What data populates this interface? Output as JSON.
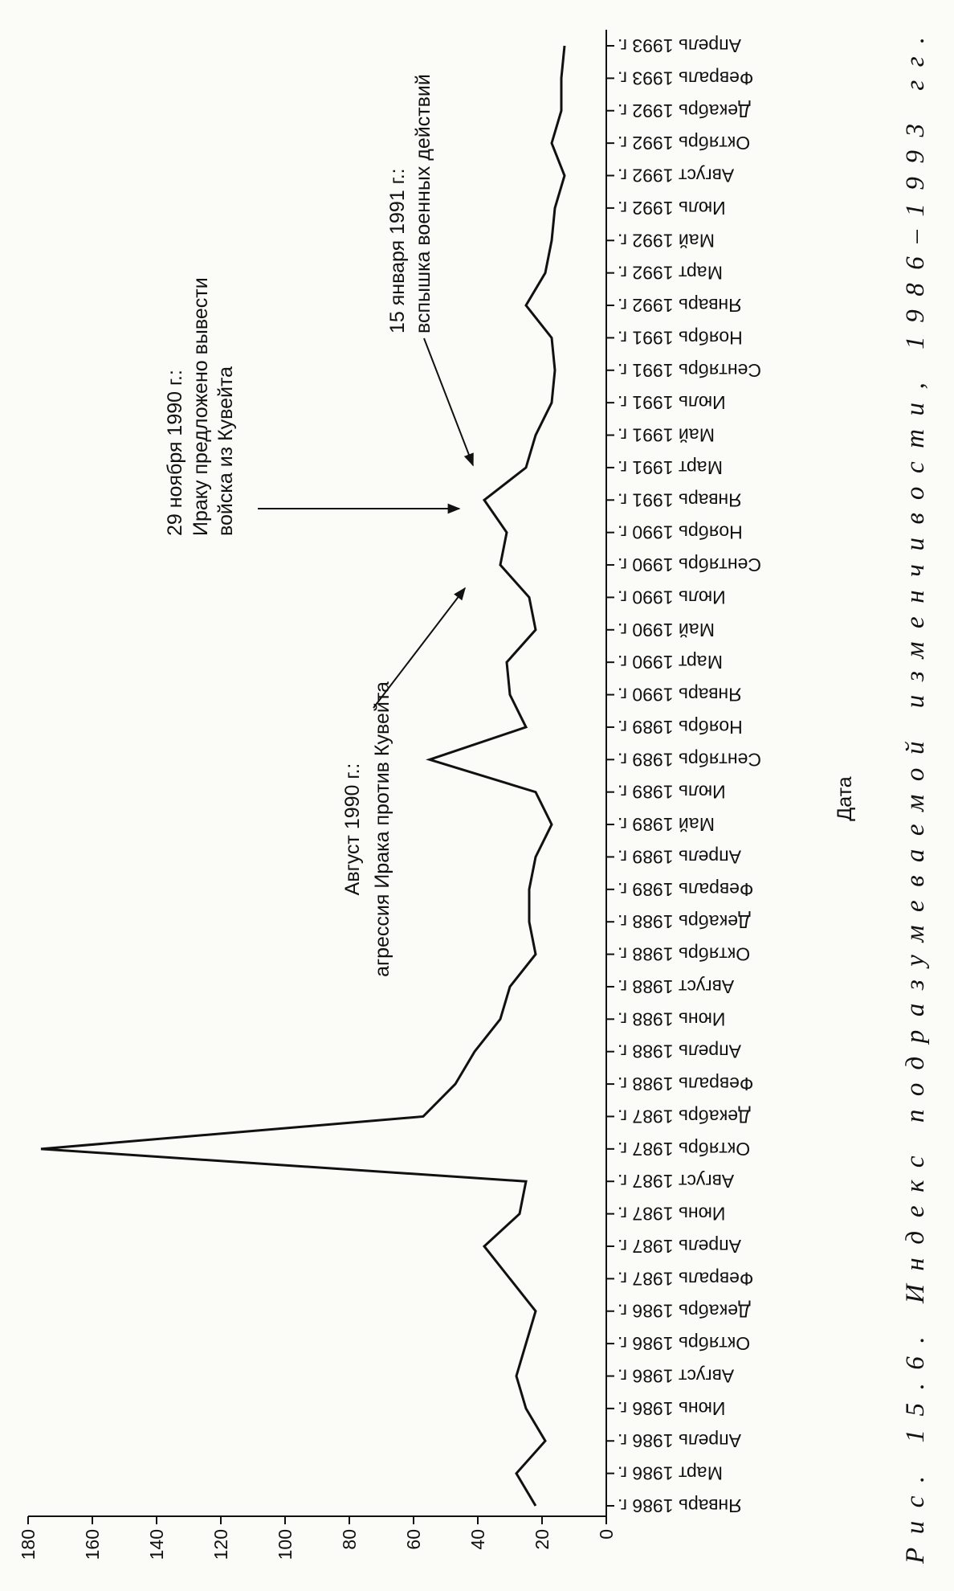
{
  "chart_data": {
    "type": "line",
    "caption": "Рис. 15.6. Индекс подразумеваемой изменчивости, 1986–1993 гг.",
    "x_label": "Дата",
    "categories": [
      "Январь 1986 г.",
      "Март 1986 г.",
      "Апрель 1986 г.",
      "Июнь 1986 г.",
      "Август 1986 г.",
      "Октябрь 1986 г.",
      "Декабрь 1986 г.",
      "Февраль 1987 г.",
      "Апрель 1987 г.",
      "Июнь 1987 г.",
      "Август 1987 г.",
      "Октябрь 1987 г.",
      "Декабрь 1987 г.",
      "Февраль 1988 г.",
      "Апрель 1988 г.",
      "Июнь 1988 г.",
      "Август 1988 г.",
      "Октябрь 1988 г.",
      "Декабрь 1988 г.",
      "Февраль 1989 г.",
      "Апрель 1989 г.",
      "Май 1989 г.",
      "Июль 1989 г.",
      "Сентябрь 1989 г.",
      "Ноябрь 1989 г.",
      "Январь 1990 г.",
      "Март 1990 г.",
      "Май 1990 г.",
      "Июль 1990 г.",
      "Сентябрь 1990 г.",
      "Ноябрь 1990 г.",
      "Январь 1991 г.",
      "Март 1991 г.",
      "Май 1991 г.",
      "Июль 1991 г.",
      "Сентябрь 1991 г.",
      "Ноябрь 1991 г.",
      "Январь 1992 г.",
      "Март 1992 г.",
      "Май 1992 г.",
      "Июль 1992 г.",
      "Август 1992 г.",
      "Октябрь 1992 г.",
      "Декабрь 1992 г.",
      "Февраль 1993 г.",
      "Апрель 1993 г."
    ],
    "values": [
      22,
      28,
      19,
      25,
      28,
      25,
      22,
      30,
      38,
      27,
      25,
      176,
      57,
      47,
      41,
      33,
      30,
      22,
      24,
      24,
      22,
      17,
      22,
      55,
      25,
      30,
      31,
      22,
      24,
      33,
      31,
      38,
      25,
      22,
      17,
      16,
      17,
      25,
      19,
      17,
      16,
      13,
      17,
      14,
      14,
      13
    ],
    "color": "#111111",
    "ylim": [
      0,
      180
    ],
    "yticks": [
      0,
      20,
      40,
      60,
      80,
      100,
      120,
      140,
      160,
      180
    ],
    "annotations": [
      [
        "Август 1990 г.:",
        "агрессия Ирака против Кувейта"
      ],
      [
        "29 ноября 1990 г.:",
        "Ираку предложено вывести",
        "войска из Кувейта"
      ],
      [
        "15 января 1991 г.:",
        "вспышка военных действий"
      ]
    ]
  }
}
